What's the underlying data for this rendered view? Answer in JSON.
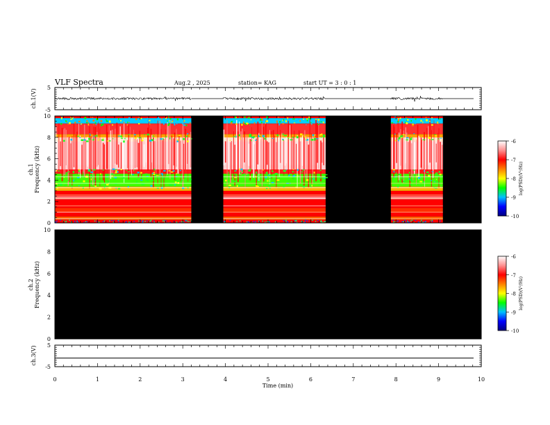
{
  "header": {
    "title": "VLF Spectra",
    "date": "Aug.2  , 2025",
    "station": "station= KAG",
    "start_ut": "start  UT =   3 : 0  : 1"
  },
  "chart_data": [
    {
      "type": "line",
      "panel": "ch1-waveform",
      "ylabel": "ch.1(V)",
      "yticks": [
        "5",
        "-5"
      ],
      "ylim": [
        -5,
        5
      ],
      "xlim": [
        0,
        10
      ],
      "signal_segments_min": [
        [
          0,
          3.2
        ],
        [
          3.95,
          6.35
        ],
        [
          7.88,
          9.1
        ]
      ],
      "trace_level": 0
    },
    {
      "type": "heatmap",
      "panel": "ch1-spectrogram",
      "ylabel": "ch.1\nFrequency  (kHz)",
      "ylabel_line1": "ch.1",
      "ylabel_line2": "Frequency  (kHz)",
      "yticks": [
        "0",
        "2",
        "4",
        "6",
        "8",
        "10"
      ],
      "ylim": [
        0,
        10
      ],
      "xlim": [
        0,
        10
      ],
      "data_segments_min": [
        [
          0,
          3.2
        ],
        [
          3.95,
          6.35
        ],
        [
          7.88,
          9.1
        ]
      ],
      "no_data_color": "#000000"
    },
    {
      "type": "heatmap",
      "panel": "ch2-spectrogram",
      "ylabel_line1": "ch.2",
      "ylabel_line2": "Frequency  (kHz)",
      "yticks": [
        "0",
        "2",
        "4",
        "6",
        "8",
        "10"
      ],
      "ylim": [
        0,
        10
      ],
      "xlim": [
        0,
        10
      ],
      "data_segments_min": [],
      "no_data_color": "#000000"
    },
    {
      "type": "line",
      "panel": "ch3-waveform",
      "ylabel": "ch.3(V)",
      "yticks": [
        "5",
        "-5"
      ],
      "ylim": [
        -5,
        5
      ],
      "xlim": [
        0,
        10
      ],
      "trace_level": -1
    }
  ],
  "xaxis": {
    "label": "Time  (min)",
    "ticks": [
      "0",
      "1",
      "2",
      "3",
      "4",
      "5",
      "6",
      "7",
      "8",
      "9",
      "10"
    ]
  },
  "colorbar": {
    "label": "log(PSD)(V²/Hz)",
    "ticks": [
      "-6",
      "-7",
      "-8",
      "-9",
      "-10"
    ],
    "range": [
      -10,
      -6
    ],
    "colors": [
      "#000080",
      "#0000ff",
      "#00c0ff",
      "#00ff00",
      "#ffff00",
      "#ff8000",
      "#ff0000",
      "#ff9090",
      "#ffffff"
    ]
  }
}
